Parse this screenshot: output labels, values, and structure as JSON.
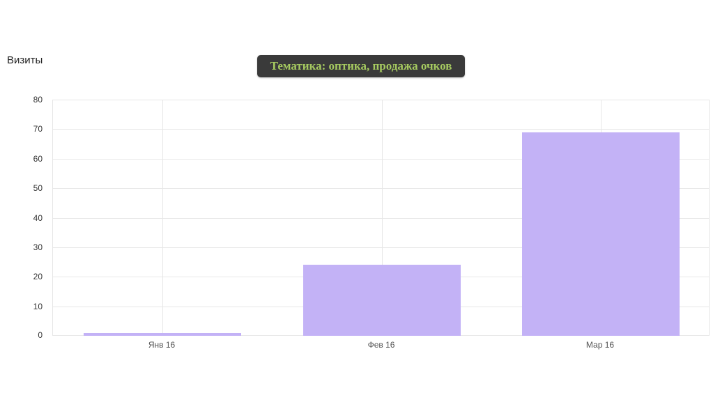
{
  "page": {
    "background": "#ffffff"
  },
  "chart_title": "Визиты",
  "tooltip": {
    "text": "Тематика: оптика, продажа очков",
    "background": "#3a3a3a",
    "text_color": "#a6ca60"
  },
  "chart_data": {
    "type": "bar",
    "title": "Визиты",
    "categories": [
      "Янв 16",
      "Фев 16",
      "Мар 16"
    ],
    "values": [
      1,
      24,
      69
    ],
    "xlabel": "",
    "ylabel": "",
    "ylim": [
      0,
      80
    ],
    "yticks": [
      0,
      10,
      20,
      30,
      40,
      50,
      60,
      70,
      80
    ],
    "grid": true,
    "legend": "none",
    "bar_color": "#c3b2f6",
    "grid_color": "#e7e7e7",
    "y_label_color": "#333333",
    "x_label_color": "#555555"
  }
}
